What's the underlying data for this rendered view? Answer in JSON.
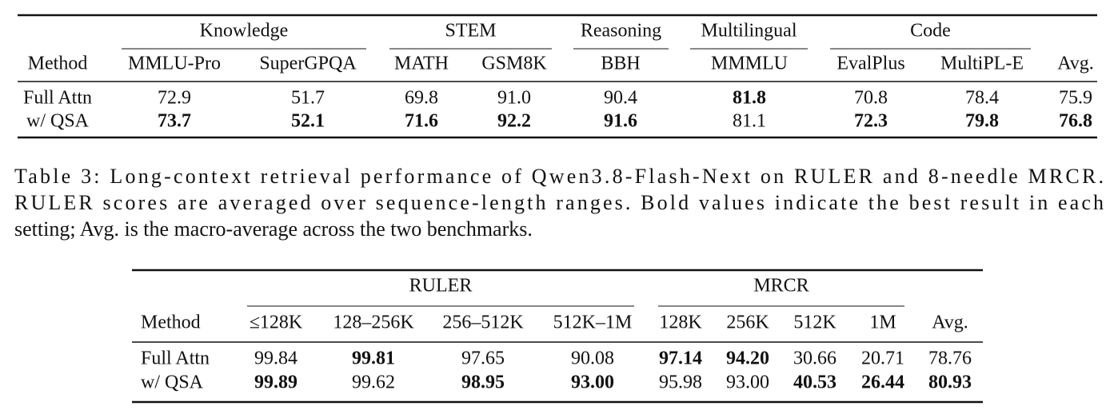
{
  "table_top": {
    "groups": [
      "Knowledge",
      "STEM",
      "Reasoning",
      "Multilingual",
      "Code"
    ],
    "columns": [
      "Method",
      "MMLU-Pro",
      "SuperGPQA",
      "MATH",
      "GSM8K",
      "BBH",
      "MMMLU",
      "EvalPlus",
      "MultiPL-E",
      "Avg."
    ],
    "rows": [
      {
        "cells": [
          "Full Attn",
          "72.9",
          "51.7",
          "69.8",
          "91.0",
          "90.4",
          "81.8",
          "70.8",
          "78.4",
          "75.9"
        ],
        "bold": [
          false,
          false,
          false,
          false,
          false,
          false,
          true,
          false,
          false,
          false
        ]
      },
      {
        "cells": [
          "w/ QSA",
          "73.7",
          "52.1",
          "71.6",
          "92.2",
          "91.6",
          "81.1",
          "72.3",
          "79.8",
          "76.8"
        ],
        "bold": [
          false,
          true,
          true,
          true,
          true,
          true,
          false,
          true,
          true,
          true
        ]
      }
    ]
  },
  "caption": {
    "lines": [
      "Table 3: Long-context retrieval performance of Qwen3.8-Flash-Next on RULER and 8-needle MRCR.",
      "RULER scores are averaged over sequence-length ranges. Bold values indicate the best result in each",
      "setting; Avg. is the macro-average across the two benchmarks."
    ]
  },
  "table_3": {
    "groups": [
      "RULER",
      "MRCR"
    ],
    "columns": [
      "Method",
      "≤128K",
      "128–256K",
      "256–512K",
      "512K–1M",
      "128K",
      "256K",
      "512K",
      "1M",
      "Avg."
    ],
    "rows": [
      {
        "cells": [
          "Full Attn",
          "99.84",
          "99.81",
          "97.65",
          "90.08",
          "97.14",
          "94.20",
          "30.66",
          "20.71",
          "78.76"
        ],
        "bold": [
          false,
          false,
          true,
          false,
          false,
          true,
          true,
          false,
          false,
          false
        ]
      },
      {
        "cells": [
          "w/ QSA",
          "99.89",
          "99.62",
          "98.95",
          "93.00",
          "95.98",
          "93.00",
          "40.53",
          "26.44",
          "80.93"
        ],
        "bold": [
          false,
          true,
          false,
          true,
          true,
          false,
          false,
          true,
          true,
          true
        ]
      }
    ]
  }
}
